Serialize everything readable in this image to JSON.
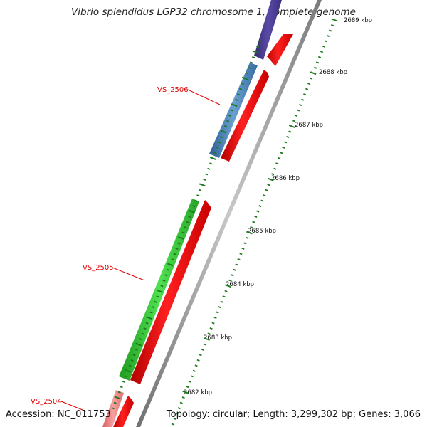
{
  "title": "Vibrio splendidus LGP32 chromosome 1, complete genome",
  "accession": "Accession: NC_011753",
  "summary": "Topology: circular; Length: 3,299,302 bp; Genes: 3,066",
  "colors": {
    "cds": "#ff1a1a",
    "gene_blue": "#4f86bd",
    "gene_green": "#3ccf3c",
    "gene_pink": "#f08080",
    "gene_purple": "#4b3c8c",
    "backbone": "#9a9a9a",
    "ticks": "#1e7a1e",
    "label": "#e00000"
  },
  "tick_labels": [
    "2689 kbp",
    "2688 kbp",
    "2687 kbp",
    "2686 kbp",
    "2685 kbp",
    "2684 kbp",
    "2683 kbp",
    "2682 kbp"
  ],
  "gene_labels": [
    "VS_2506",
    "VS_2505",
    "VS_2504"
  ]
}
